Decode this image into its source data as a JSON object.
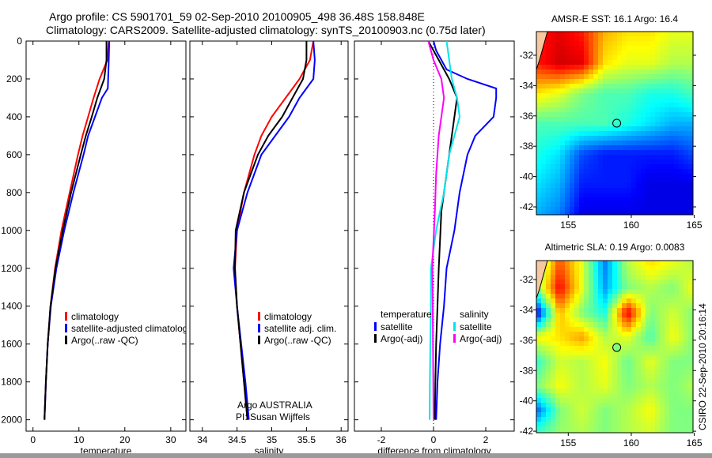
{
  "header": {
    "line1": "Argo profile: CS 5901701_59 02-Sep-2010 20100905_498 36.48S 158.848E",
    "line2": "Climatology: CARS2009. Satellite-adjusted climatology: synTS_20100903.nc (0.75d later)"
  },
  "side_text": "CSIRO 22-Sep-2010 20:16:14",
  "colors": {
    "red": "#ff0000",
    "blue": "#0000ff",
    "black": "#000000",
    "cyan": "#00e5ee",
    "magenta": "#ff00ff",
    "land": "#f7c8a0"
  },
  "chart_data": [
    {
      "type": "line",
      "id": "temperature",
      "xlabel": "temperature",
      "xlim": [
        -1.5,
        33.3
      ],
      "xticks": [
        0,
        10,
        20,
        30
      ],
      "ylim": [
        0,
        2060
      ],
      "yticks": [
        0,
        200,
        400,
        600,
        800,
        1000,
        1200,
        1400,
        1600,
        1800,
        2000
      ],
      "yreversed": true,
      "legend": {
        "position": "lower-center",
        "entries": [
          "climatology",
          "satellite-adjusted climatology",
          "Argo(..raw -QC)"
        ]
      },
      "series": [
        {
          "name": "climatology",
          "color": "#ff0000",
          "depth": [
            0,
            100,
            200,
            300,
            400,
            500,
            600,
            800,
            1000,
            1200,
            1400,
            1600,
            1800,
            2000
          ],
          "values": [
            16.5,
            16.2,
            14.5,
            13.2,
            12.0,
            10.8,
            9.8,
            8.0,
            6.2,
            4.8,
            3.8,
            3.2,
            2.8,
            2.5
          ]
        },
        {
          "name": "satellite-adjusted climatology",
          "color": "#0000ff",
          "depth": [
            0,
            100,
            250,
            300,
            400,
            500,
            600,
            800,
            1000,
            1200,
            1400,
            1600,
            1800,
            2000
          ],
          "values": [
            16.6,
            16.5,
            16.3,
            15.0,
            13.5,
            12.0,
            11.0,
            8.8,
            6.8,
            5.1,
            3.9,
            3.2,
            2.8,
            2.5
          ]
        },
        {
          "name": "Argo(..raw -QC)",
          "color": "#000000",
          "depth": [
            0,
            100,
            200,
            300,
            400,
            500,
            600,
            800,
            1000,
            1200,
            1400,
            1600,
            1800,
            2000
          ],
          "values": [
            16.0,
            16.0,
            15.5,
            14.0,
            12.8,
            11.5,
            10.4,
            8.3,
            6.5,
            4.9,
            3.8,
            3.2,
            2.8,
            2.5
          ]
        }
      ]
    },
    {
      "type": "line",
      "id": "salinity",
      "xlabel": "salinity",
      "xlim": [
        33.82,
        36.1
      ],
      "xticks": [
        34,
        34.5,
        35,
        35.5,
        36
      ],
      "ylim": [
        0,
        2060
      ],
      "yreversed": true,
      "legend": {
        "position": "lower-center",
        "entries": [
          "climatology",
          "satellite adj. clim.",
          "Argo(..raw -QC)"
        ]
      },
      "annotations": [
        "Argo AUSTRALIA",
        "PI: Susan Wijffels"
      ],
      "series": [
        {
          "name": "climatology",
          "color": "#ff0000",
          "depth": [
            0,
            100,
            200,
            300,
            400,
            500,
            600,
            800,
            1000,
            1200,
            1400,
            1600,
            1800,
            2000
          ],
          "values": [
            35.6,
            35.55,
            35.4,
            35.2,
            35.0,
            34.85,
            34.75,
            34.6,
            34.5,
            34.47,
            34.5,
            34.55,
            34.6,
            34.65
          ]
        },
        {
          "name": "satellite adj. clim.",
          "color": "#0000ff",
          "depth": [
            0,
            100,
            200,
            300,
            400,
            500,
            600,
            800,
            1000,
            1200,
            1400,
            1600,
            1800,
            2000
          ],
          "values": [
            35.6,
            35.62,
            35.6,
            35.4,
            35.25,
            35.05,
            34.85,
            34.65,
            34.5,
            34.45,
            34.5,
            34.56,
            34.62,
            34.67
          ]
        },
        {
          "name": "Argo(..raw -QC)",
          "color": "#000000",
          "depth": [
            0,
            100,
            200,
            300,
            400,
            500,
            600,
            800,
            1000,
            1200,
            1400,
            1600,
            1800,
            2000
          ],
          "values": [
            35.5,
            35.5,
            35.45,
            35.3,
            35.15,
            34.95,
            34.8,
            34.6,
            34.48,
            34.47,
            34.5,
            34.55,
            34.6,
            34.65
          ]
        }
      ]
    },
    {
      "type": "line",
      "id": "difference",
      "xlabel": "difference from climatology",
      "xlim": [
        -3.03,
        3.09
      ],
      "xticks": [
        -2,
        0,
        2
      ],
      "ylim": [
        0,
        2060
      ],
      "yreversed": true,
      "zero_line": true,
      "legend": {
        "position": "lower-center",
        "temperature_title": "temperature",
        "salinity_title": "salinity",
        "entries": [
          "satellite",
          "Argo(-adj)",
          "satellite",
          "Argo(-adj)"
        ]
      },
      "series": [
        {
          "name": "temperature satellite",
          "color": "#0000ff",
          "depth": [
            0,
            50,
            150,
            200,
            250,
            300,
            400,
            500,
            600,
            800,
            1000,
            1200,
            1400,
            1600,
            1800,
            2000
          ],
          "values": [
            0,
            0.1,
            0.5,
            1.3,
            2.4,
            2.4,
            2.3,
            1.6,
            1.3,
            1.0,
            0.8,
            0.5,
            0.4,
            0.25,
            0.15,
            0.1
          ]
        },
        {
          "name": "temperature Argo(-adj)",
          "color": "#000000",
          "depth": [
            0,
            150,
            200,
            300,
            500,
            700,
            900,
            1200,
            1400,
            1600,
            1800,
            2000
          ],
          "values": [
            -0.2,
            0.4,
            0.6,
            0.9,
            0.7,
            0.5,
            0.3,
            0.2,
            0.15,
            0.1,
            0.07,
            0.05
          ]
        },
        {
          "name": "salinity satellite",
          "color": "#00e5ee",
          "depth": [
            0,
            100,
            200,
            300,
            400,
            500,
            600,
            800,
            1000,
            1200,
            1400,
            1600,
            1800,
            2000
          ],
          "values": [
            0.5,
            0.6,
            0.7,
            0.9,
            1.0,
            0.8,
            0.6,
            0.4,
            0.1,
            -0.1,
            -0.1,
            -0.12,
            -0.14,
            -0.15
          ]
        },
        {
          "name": "salinity Argo(-adj)",
          "color": "#ff00ff",
          "depth": [
            0,
            100,
            200,
            300,
            400,
            500,
            700,
            900,
            1200,
            1400,
            1600,
            1800,
            2000
          ],
          "values": [
            -0.2,
            0,
            0.3,
            0.4,
            0.3,
            0.2,
            0.1,
            0.05,
            -0.05,
            -0.03,
            -0.02,
            -0.01,
            0
          ]
        }
      ]
    },
    {
      "type": "heatmap",
      "id": "sst",
      "title": "AMSR-E SST: 16.1 Argo: 16.4",
      "lonlim": [
        152.47,
        164.9
      ],
      "latlim": [
        -42.52,
        -30.44
      ],
      "xticks": [
        155,
        160,
        165
      ],
      "yticks": [
        -32,
        -34,
        -36,
        -38,
        -40,
        -42
      ],
      "ytick_labels": [
        "-32",
        "-34",
        "-36",
        "-38",
        "-40",
        "-42"
      ],
      "marker": {
        "lon": 158.848,
        "lat": -36.48,
        "value": 0.42
      },
      "grid_lats": [
        -30.5,
        -32.5,
        -34.5,
        -36.5,
        -38.5,
        -40.5,
        -42.5
      ],
      "grid_lons": [
        152.5,
        154.3,
        156.1,
        157.9,
        159.7,
        161.5,
        163.3,
        165
      ],
      "grid": [
        [
          0.85,
          0.9,
          0.85,
          0.7,
          0.65,
          0.65,
          0.6,
          0.6
        ],
        [
          0.85,
          0.92,
          0.9,
          0.65,
          0.6,
          0.6,
          0.55,
          0.55
        ],
        [
          0.65,
          0.6,
          0.5,
          0.45,
          0.45,
          0.4,
          0.4,
          0.45
        ],
        [
          0.45,
          0.45,
          0.45,
          0.45,
          0.4,
          0.35,
          0.3,
          0.3
        ],
        [
          0.4,
          0.35,
          0.2,
          0.15,
          0.15,
          0.15,
          0.15,
          0.2
        ],
        [
          0.35,
          0.3,
          0.15,
          0.15,
          0.15,
          0.1,
          0.1,
          0.1
        ],
        [
          0.3,
          0.25,
          0.1,
          0.1,
          0.1,
          0.1,
          0.1,
          0.1
        ]
      ]
    },
    {
      "type": "heatmap",
      "id": "sla",
      "title": "Altimetric SLA: 0.19 Argo: 0.0083",
      "lonlim": [
        152.47,
        164.9
      ],
      "latlim": [
        -42.1,
        -30.75
      ],
      "xticks": [
        155,
        160,
        165
      ],
      "yticks": [
        -32,
        -34,
        -36,
        -38,
        -40,
        -42
      ],
      "ytick_labels": [
        "-32",
        "-34",
        "-36",
        "-38",
        "-40",
        "-42"
      ],
      "marker": {
        "lon": 158.848,
        "lat": -36.48,
        "value": 0.5
      },
      "grid_lats": [
        -31,
        -32.6,
        -34.2,
        -35.8,
        -37.4,
        -39,
        -40.6,
        -42.1
      ],
      "grid_lons": [
        152.5,
        154.3,
        156.1,
        157.9,
        159.7,
        161.5,
        163.3,
        165
      ],
      "grid": [
        [
          0.45,
          0.8,
          0.6,
          0.25,
          0.55,
          0.65,
          0.6,
          0.55
        ],
        [
          0.5,
          0.88,
          0.6,
          0.28,
          0.5,
          0.55,
          0.5,
          0.62
        ],
        [
          0.1,
          0.7,
          0.5,
          0.4,
          0.9,
          0.5,
          0.58,
          0.5
        ],
        [
          0.62,
          0.65,
          0.72,
          0.55,
          0.6,
          0.45,
          0.62,
          0.5
        ],
        [
          0.42,
          0.58,
          0.55,
          0.62,
          0.48,
          0.6,
          0.5,
          0.5
        ],
        [
          0.5,
          0.62,
          0.55,
          0.6,
          0.5,
          0.55,
          0.5,
          0.55
        ],
        [
          0.22,
          0.5,
          0.58,
          0.5,
          0.55,
          0.62,
          0.5,
          0.5
        ],
        [
          0.45,
          0.52,
          0.55,
          0.5,
          0.55,
          0.58,
          0.5,
          0.5
        ]
      ]
    }
  ]
}
